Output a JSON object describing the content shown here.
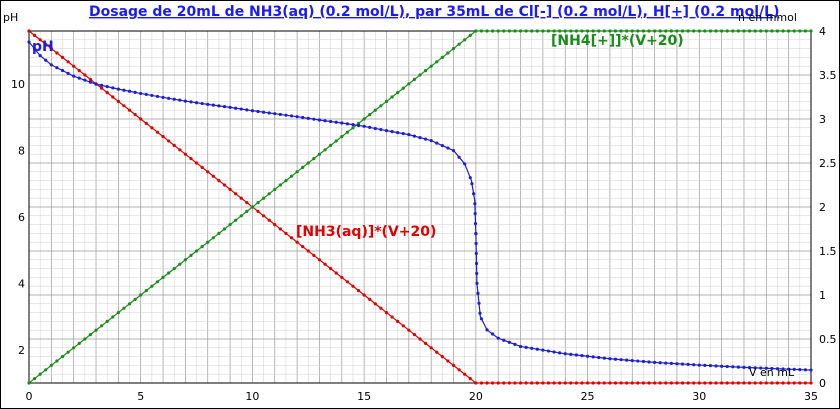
{
  "chart_data": {
    "type": "line",
    "title": "Dosage de 20mL de NH3(aq) (0.2 mol/L),  par 35mL  de Cl[-] (0.2 mol/L), H[+] (0.2 mol/L)",
    "ylabel_left": "pH",
    "ylabel_right": "n en mmol",
    "xlabel": "V en mL",
    "xlim": [
      0,
      35
    ],
    "ylim_left": [
      1,
      11.6
    ],
    "ylim_right": [
      0,
      4
    ],
    "x_ticks": [
      0,
      5,
      10,
      15,
      20,
      25,
      30,
      35
    ],
    "y_left_ticks": [
      2,
      4,
      6,
      8,
      10
    ],
    "y_right_ticks": [
      0,
      0.5,
      1,
      1.5,
      2,
      2.5,
      3,
      3.5,
      4
    ],
    "grid": true,
    "colors": {
      "ph": "#1f1fd0",
      "nh3": "#e00000",
      "nh4": "#1a8c1a",
      "title": "#1a1aff"
    },
    "series": [
      {
        "name": "pH",
        "axis": "left",
        "label": "pH"
      },
      {
        "name": "[NH3(aq)]*(V+20)",
        "axis": "right",
        "label": "[NH3(aq)]*(V+20)"
      },
      {
        "name": "[NH4[+]]*(V+20)",
        "axis": "right",
        "label": "[NH4[+]]*(V+20)"
      }
    ],
    "ph_points": [
      [
        0,
        11.27
      ],
      [
        0.5,
        10.86
      ],
      [
        1,
        10.58
      ],
      [
        2,
        10.24
      ],
      [
        3,
        10.0
      ],
      [
        4,
        9.85
      ],
      [
        5,
        9.72
      ],
      [
        6,
        9.6
      ],
      [
        7,
        9.49
      ],
      [
        8,
        9.39
      ],
      [
        9,
        9.3
      ],
      [
        10,
        9.2
      ],
      [
        11,
        9.11
      ],
      [
        12,
        9.02
      ],
      [
        13,
        8.92
      ],
      [
        14,
        8.83
      ],
      [
        15,
        8.73
      ],
      [
        16,
        8.6
      ],
      [
        17,
        8.48
      ],
      [
        18,
        8.3
      ],
      [
        19,
        8.0
      ],
      [
        19.5,
        7.6
      ],
      [
        19.8,
        7.1
      ],
      [
        19.95,
        6.5
      ],
      [
        20,
        5.5
      ],
      [
        20.05,
        4.0
      ],
      [
        20.2,
        3.0
      ],
      [
        20.5,
        2.6
      ],
      [
        21,
        2.35
      ],
      [
        22,
        2.1
      ],
      [
        24,
        1.88
      ],
      [
        26,
        1.73
      ],
      [
        28,
        1.62
      ],
      [
        30,
        1.54
      ],
      [
        32,
        1.47
      ],
      [
        35,
        1.39
      ]
    ],
    "nh3_points": [
      [
        0,
        4
      ],
      [
        20,
        0
      ],
      [
        35,
        0
      ]
    ],
    "nh4_points": [
      [
        0,
        0
      ],
      [
        20,
        4
      ],
      [
        35,
        4
      ]
    ]
  }
}
